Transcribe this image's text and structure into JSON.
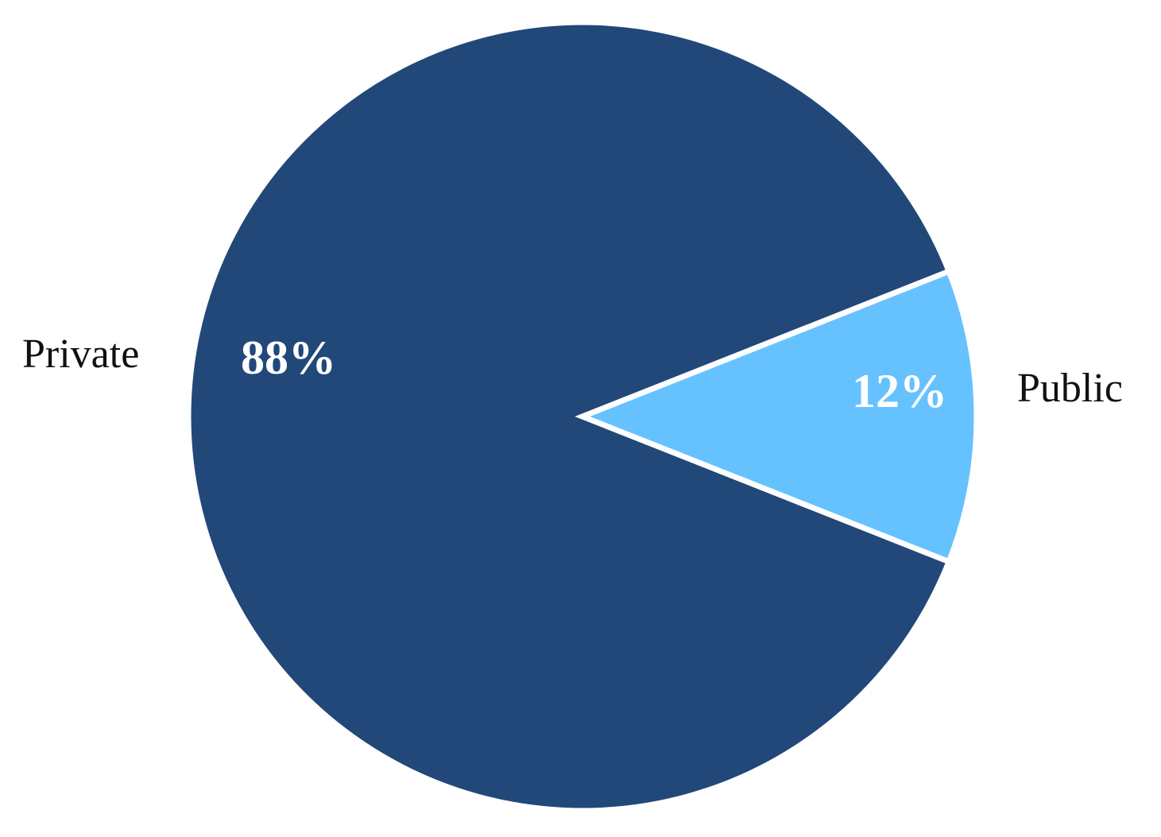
{
  "chart_data": {
    "type": "pie",
    "title": "",
    "slices": [
      {
        "label": "Private",
        "value": 88,
        "value_label": "88%",
        "color": "#214879"
      },
      {
        "label": "Public",
        "value": 12,
        "value_label": "12%",
        "color": "#66C2FF"
      }
    ],
    "slice_border_color": "#ffffff",
    "legend": "none"
  }
}
